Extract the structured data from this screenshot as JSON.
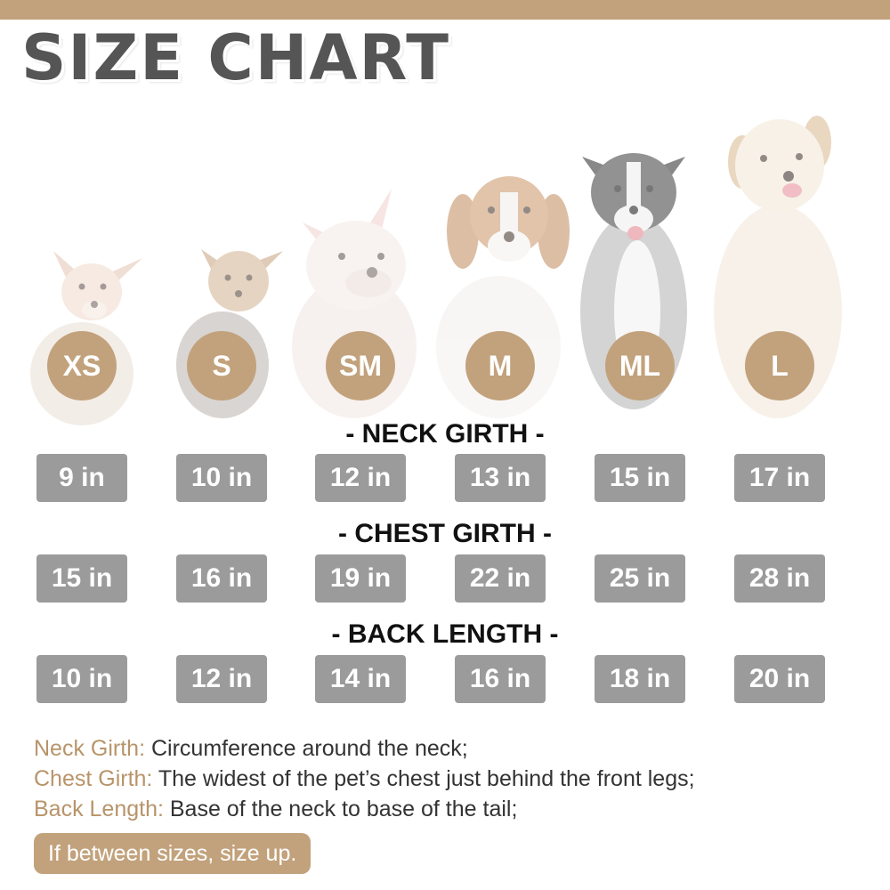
{
  "title": "SIZE CHART",
  "colors": {
    "accent": "#c2a27c",
    "pill": "#9b9b9b",
    "heading": "#555555",
    "label": "#b8946a"
  },
  "sizes": [
    {
      "label": "XS",
      "neck": "9 in",
      "chest": "15 in",
      "back": "10 in",
      "dog": "chihuahua-image"
    },
    {
      "label": "S",
      "neck": "10 in",
      "chest": "16 in",
      "back": "12 in",
      "dog": "yorkshire-terrier-image"
    },
    {
      "label": "SM",
      "neck": "12 in",
      "chest": "19 in",
      "back": "14 in",
      "dog": "french-bulldog-image"
    },
    {
      "label": "M",
      "neck": "13 in",
      "chest": "22 in",
      "back": "16 in",
      "dog": "beagle-image"
    },
    {
      "label": "ML",
      "neck": "15 in",
      "chest": "25 in",
      "back": "18 in",
      "dog": "border-collie-image"
    },
    {
      "label": "L",
      "neck": "17 in",
      "chest": "28 in",
      "back": "20 in",
      "dog": "golden-retriever-image"
    }
  ],
  "sections": {
    "neck": "- NECK GIRTH -",
    "chest": "- CHEST GIRTH -",
    "back": "- BACK LENGTH -"
  },
  "notes": [
    {
      "term": "Neck Girth:",
      "text": " Circumference around the neck;"
    },
    {
      "term": "Chest Girth:",
      "text": " The widest of the pet’s chest just behind the front legs;"
    },
    {
      "term": "Back Length:",
      "text": " Base of the neck to base of the tail;"
    }
  ],
  "tip": "If between sizes, size up."
}
